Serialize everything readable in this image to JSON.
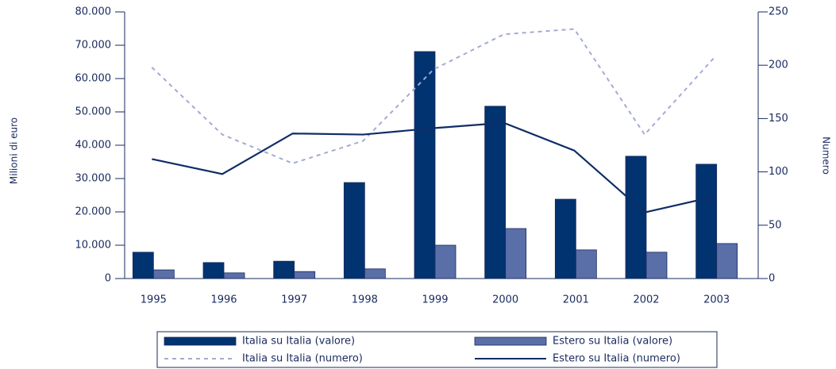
{
  "chart_data": {
    "type": "bar_line",
    "categories": [
      "1995",
      "1996",
      "1997",
      "1998",
      "1999",
      "2000",
      "2001",
      "2002",
      "2003"
    ],
    "ylabel": "Milioni di euro",
    "y2label": "Numero",
    "ylim": [
      0,
      80000
    ],
    "yticks": [
      0,
      {
        "value": 10000,
        "label": "10.000"
      },
      {
        "value": 20000,
        "label": "20.000"
      },
      {
        "value": 30000,
        "label": "30.000"
      },
      {
        "value": 40000,
        "label": "40.000"
      },
      {
        "value": 50000,
        "label": "50.000"
      },
      {
        "value": 60000,
        "label": "60.000"
      },
      {
        "value": 70000,
        "label": "70.000"
      },
      {
        "value": 80000,
        "label": "80.000"
      }
    ],
    "y2lim": [
      0,
      250
    ],
    "y2ticks": [
      0,
      50,
      100,
      150,
      200,
      250
    ],
    "series": [
      {
        "name": "Italia su Italia (valore)",
        "kind": "bar",
        "color": "#003370",
        "values": [
          7900,
          4800,
          5200,
          28800,
          68100,
          51700,
          23800,
          36700,
          34300
        ]
      },
      {
        "name": "Estero su Italia (valore)",
        "kind": "bar",
        "color": "#5a6ea8",
        "values": [
          2600,
          1700,
          2100,
          2900,
          10000,
          15000,
          8600,
          7900,
          10500
        ]
      },
      {
        "name": "Italia su Italia (numero)",
        "kind": "dashed-line",
        "color": "#a3abd3",
        "axis": "y2",
        "values": [
          198,
          135,
          108,
          129,
          196,
          229,
          234,
          135,
          208
        ]
      },
      {
        "name": "Estero su Italia (numero)",
        "kind": "line",
        "color": "#0f2d68",
        "axis": "y2",
        "values": [
          112,
          98,
          136,
          135,
          141,
          146,
          120,
          62,
          77
        ]
      }
    ]
  }
}
